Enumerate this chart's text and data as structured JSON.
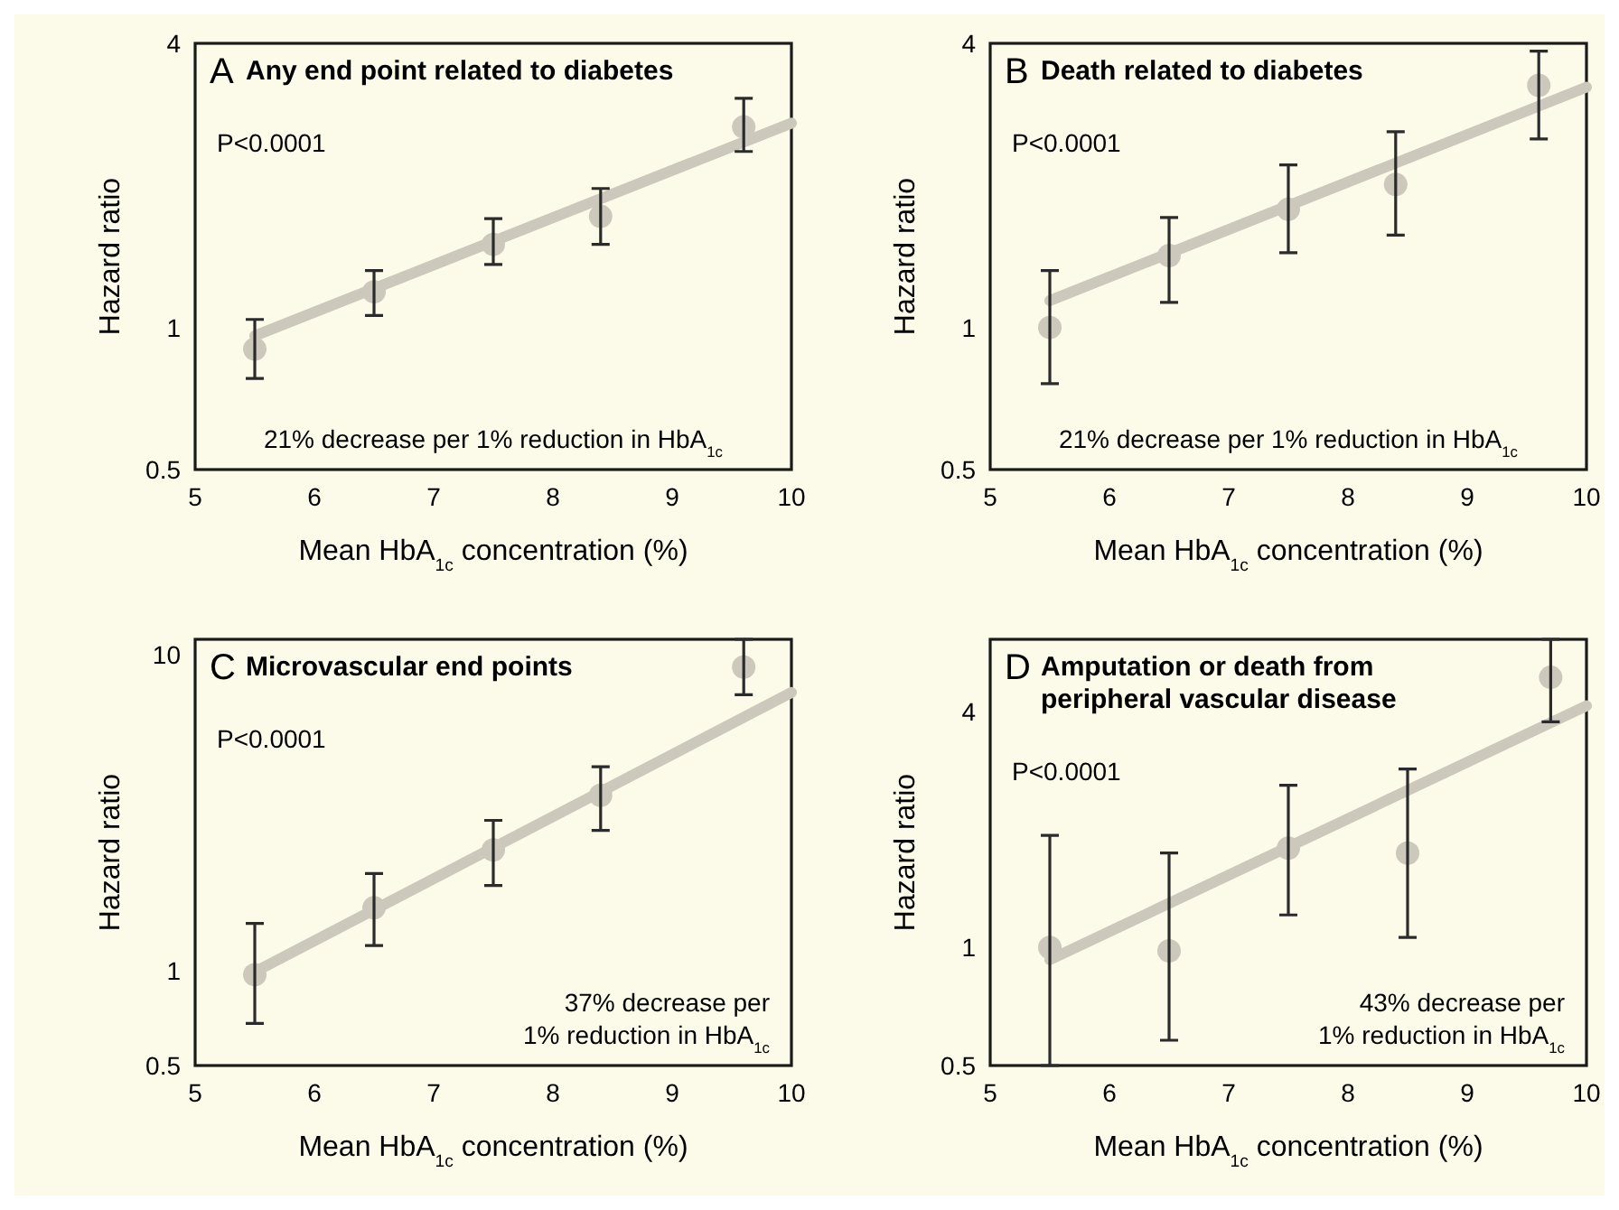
{
  "chart_data": [
    {
      "type": "scatter",
      "title": "Any end point related to diabetes",
      "xlabel": "Mean HbA$_{1c}$ concentration (%)",
      "ylabel": "Hazard ratio",
      "annotations": [
        "A",
        "P<0.0001",
        "21% decrease per 1% reduction in HbA$_{1c}$"
      ],
      "log": "y",
      "xlim": [
        5,
        10
      ],
      "xticks": [
        5,
        6,
        7,
        8,
        9,
        10
      ],
      "ylim": [
        0.5,
        4
      ],
      "yticks": [
        0.5,
        1,
        4
      ],
      "grid": false,
      "marker": "circle",
      "series": [
        {
          "type": "line",
          "color": "#cdc8bc",
          "x": [
            5.5,
            10
          ],
          "values": [
            0.96,
            2.71
          ],
          "marker": "none"
        },
        {
          "type": "scatter",
          "color": "#cdc8bc",
          "x": [
            5.5,
            6.5,
            7.5,
            8.4,
            9.6
          ],
          "values": [
            0.9,
            1.19,
            1.5,
            1.72,
            2.66
          ],
          "errors": [
            [
              0.78,
              1.04
            ],
            [
              1.06,
              1.32
            ],
            [
              1.36,
              1.7
            ],
            [
              1.5,
              1.97
            ],
            [
              2.36,
              3.06
            ]
          ]
        }
      ]
    },
    {
      "type": "scatter",
      "title": "Death related to diabetes",
      "xlabel": "Mean HbA$_{1c}$ concentration (%)",
      "ylabel": "Hazard ratio",
      "annotations": [
        "B",
        "P<0.0001",
        "21% decrease per 1% reduction in HbA$_{1c}$"
      ],
      "log": "y",
      "xlim": [
        5,
        10
      ],
      "xticks": [
        5,
        6,
        7,
        8,
        9,
        10
      ],
      "ylim": [
        0.5,
        4
      ],
      "yticks": [
        0.5,
        1,
        4
      ],
      "grid": false,
      "marker": "circle",
      "series": [
        {
          "type": "line",
          "color": "#cdc8bc",
          "x": [
            5.5,
            10
          ],
          "values": [
            1.14,
            3.23
          ],
          "marker": "none"
        },
        {
          "type": "scatter",
          "color": "#cdc8bc",
          "x": [
            5.5,
            6.5,
            7.5,
            8.4,
            9.6
          ],
          "values": [
            1.0,
            1.42,
            1.78,
            2.01,
            3.26
          ],
          "errors": [
            [
              0.76,
              1.32
            ],
            [
              1.13,
              1.71
            ],
            [
              1.44,
              2.21
            ],
            [
              1.57,
              2.6
            ],
            [
              2.51,
              3.85
            ]
          ]
        }
      ]
    },
    {
      "type": "scatter",
      "title": "Microvascular end points",
      "xlabel": "Mean HbA$_{1c}$ concentration (%)",
      "ylabel": "Hazard ratio",
      "annotations": [
        "C",
        "P<0.0001",
        "37% decrease per\n1% reduction in HbA$_{1c}$"
      ],
      "log": "y",
      "xlim": [
        5,
        10
      ],
      "xticks": [
        5,
        6,
        7,
        8,
        9,
        10
      ],
      "ylim": [
        0.5,
        11.2
      ],
      "yticks": [
        0.5,
        1,
        10
      ],
      "grid": false,
      "marker": "circle",
      "series": [
        {
          "type": "line",
          "color": "#cdc8bc",
          "x": [
            5.5,
            10
          ],
          "values": [
            0.99,
            7.6
          ],
          "marker": "none"
        },
        {
          "type": "scatter",
          "color": "#cdc8bc",
          "x": [
            5.5,
            6.5,
            7.5,
            8.4,
            9.6
          ],
          "values": [
            0.97,
            1.58,
            2.41,
            3.59,
            9.15
          ],
          "errors": [
            [
              0.68,
              1.41
            ],
            [
              1.2,
              2.03
            ],
            [
              1.86,
              2.99
            ],
            [
              2.78,
              4.42
            ],
            [
              7.48,
              11.2
            ]
          ]
        }
      ]
    },
    {
      "type": "scatter",
      "title": "Amputation or death from peripheral vascular disease",
      "xlabel": "Mean HbA$_{1c}$ concentration (%)",
      "ylabel": "Hazard ratio",
      "annotations": [
        "D",
        "P<0.0001",
        "43% decrease per\n1% reduction in HbA$_{1c}$"
      ],
      "log": "y",
      "xlim": [
        5,
        10
      ],
      "xticks": [
        5,
        6,
        7,
        8,
        9,
        10
      ],
      "ylim": [
        0.5,
        6.1
      ],
      "yticks": [
        0.5,
        1,
        4
      ],
      "grid": false,
      "marker": "circle",
      "series": [
        {
          "type": "line",
          "color": "#cdc8bc",
          "x": [
            5.5,
            10
          ],
          "values": [
            0.93,
            4.13
          ],
          "marker": "none"
        },
        {
          "type": "scatter",
          "color": "#cdc8bc",
          "x": [
            5.5,
            6.5,
            7.5,
            8.5,
            9.7
          ],
          "values": [
            1.0,
            0.98,
            1.79,
            1.74,
            4.88
          ],
          "errors": [
            [
              0.5,
              1.93
            ],
            [
              0.58,
              1.74
            ],
            [
              1.21,
              2.59
            ],
            [
              1.06,
              2.85
            ],
            [
              3.76,
              6.1
            ]
          ]
        }
      ]
    }
  ]
}
